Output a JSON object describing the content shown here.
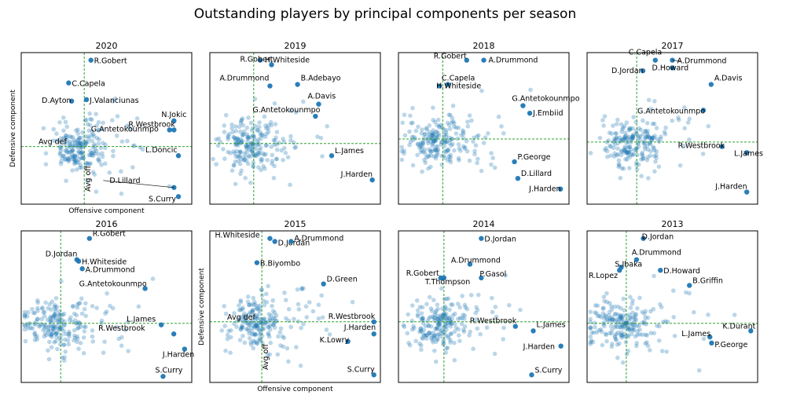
{
  "figure": {
    "title": "Outstanding players by principal components per season"
  },
  "chart_data": [
    {
      "type": "scatter",
      "title": "2020",
      "xlabel": "Offensive component",
      "ylabel": "Defensive component",
      "avg_labels": {
        "x": "Avg off",
        "y": "Avg def"
      },
      "xlim": [
        -3.5,
        8
      ],
      "ylim": [
        -3.5,
        6.5
      ],
      "avg": {
        "x": 0.75,
        "y": 0.3
      },
      "highlighted": [
        {
          "name": "R.Gobert",
          "x": 1.2,
          "y": 6.0
        },
        {
          "name": "C.Capela",
          "x": -0.3,
          "y": 4.5
        },
        {
          "name": "J.Valanciunas",
          "x": 0.9,
          "y": 3.4
        },
        {
          "name": "D.Ayton",
          "x": -0.1,
          "y": 3.3
        },
        {
          "name": "N.Jokic",
          "x": 6.8,
          "y": 2.0
        },
        {
          "name": "G.Antetokounmpo",
          "x": 6.5,
          "y": 1.4
        },
        {
          "name": "R.Westbrook",
          "x": 6.8,
          "y": 1.4
        },
        {
          "name": "L.Doncic",
          "x": 7.1,
          "y": -0.3
        },
        {
          "name": "D.Lillard",
          "x": 6.8,
          "y": -2.4
        },
        {
          "name": "S.Curry",
          "x": 7.1,
          "y": -3.0
        }
      ]
    },
    {
      "type": "scatter",
      "title": "2019",
      "xlim": [
        -2.5,
        8
      ],
      "ylim": [
        -3.5,
        6.5
      ],
      "avg": {
        "x": 0.2,
        "y": 0.5
      },
      "highlighted": [
        {
          "name": "H.Whiteside",
          "x": 0.6,
          "y": 6.0
        },
        {
          "name": "R.Gobert",
          "x": 1.3,
          "y": 5.7
        },
        {
          "name": "A.Drummond",
          "x": 1.2,
          "y": 4.3
        },
        {
          "name": "B.Adebayo",
          "x": 2.9,
          "y": 4.4
        },
        {
          "name": "A.Davis",
          "x": 4.2,
          "y": 3.1
        },
        {
          "name": "G.Antetokounmpo",
          "x": 4.0,
          "y": 2.3
        },
        {
          "name": "L.James",
          "x": 5.0,
          "y": -0.3
        },
        {
          "name": "J.Harden",
          "x": 7.5,
          "y": -1.9
        }
      ]
    },
    {
      "type": "scatter",
      "title": "2018",
      "xlim": [
        -2,
        8
      ],
      "ylim": [
        -3.5,
        6.5
      ],
      "avg": {
        "x": 0.6,
        "y": 0.8
      },
      "highlighted": [
        {
          "name": "R.Gobert",
          "x": 2.0,
          "y": 6.0
        },
        {
          "name": "A.Drummond",
          "x": 3.0,
          "y": 6.0
        },
        {
          "name": "C.Capela",
          "x": 0.9,
          "y": 4.4
        },
        {
          "name": "H.Whiteside",
          "x": 0.4,
          "y": 4.3
        },
        {
          "name": "G.Antetokounmpo",
          "x": 5.3,
          "y": 3.0
        },
        {
          "name": "J.Embiid",
          "x": 5.7,
          "y": 2.5
        },
        {
          "name": "P.George",
          "x": 4.8,
          "y": -0.7
        },
        {
          "name": "D.Lillard",
          "x": 5.0,
          "y": -1.8
        },
        {
          "name": "J.Harden",
          "x": 7.5,
          "y": -2.5
        }
      ]
    },
    {
      "type": "scatter",
      "title": "2017",
      "xlim": [
        -3,
        8
      ],
      "ylim": [
        -3.5,
        6.5
      ],
      "avg": {
        "x": 0.2,
        "y": 0.6
      },
      "highlighted": [
        {
          "name": "C.Capela",
          "x": 1.4,
          "y": 6.0
        },
        {
          "name": "A.Drummond",
          "x": 2.5,
          "y": 6.0
        },
        {
          "name": "D.Jordan",
          "x": 0.6,
          "y": 5.3
        },
        {
          "name": "D.Howard",
          "x": 2.5,
          "y": 5.5
        },
        {
          "name": "A.Davis",
          "x": 5.0,
          "y": 4.4
        },
        {
          "name": "G.Antetokounmpo",
          "x": 4.5,
          "y": 2.7
        },
        {
          "name": "R.Westbrook",
          "x": 5.7,
          "y": 0.3
        },
        {
          "name": "L.James",
          "x": 7.3,
          "y": -0.1
        },
        {
          "name": "J.Harden",
          "x": 7.3,
          "y": -2.7
        }
      ]
    },
    {
      "type": "scatter",
      "title": "2016",
      "xlim": [
        -2,
        7.5
      ],
      "ylim": [
        -3.5,
        6.5
      ],
      "avg": {
        "x": 0.2,
        "y": 0.4
      },
      "highlighted": [
        {
          "name": "R.Gobert",
          "x": 1.8,
          "y": 6.0
        },
        {
          "name": "D.Jordan",
          "x": 1.1,
          "y": 4.6
        },
        {
          "name": "H.Whiteside",
          "x": 1.2,
          "y": 4.5
        },
        {
          "name": "A.Drummond",
          "x": 1.4,
          "y": 4.0
        },
        {
          "name": "G.Antetokounmpo",
          "x": 4.9,
          "y": 2.7
        },
        {
          "name": "L.James",
          "x": 5.8,
          "y": 0.3
        },
        {
          "name": "R.Westbrook",
          "x": 6.5,
          "y": -0.3
        },
        {
          "name": "J.Harden",
          "x": 7.1,
          "y": -1.3
        },
        {
          "name": "S.Curry",
          "x": 5.9,
          "y": -3.1
        }
      ]
    },
    {
      "type": "scatter",
      "title": "2015",
      "xlabel": "Offensive component",
      "ylabel": "Defensive component",
      "avg_labels": {
        "x": "Avg off",
        "y": "Avg def"
      },
      "xlim": [
        -2.5,
        8
      ],
      "ylim": [
        -3.5,
        6.5
      ],
      "avg": {
        "x": 0.7,
        "y": 0.5
      },
      "highlighted": [
        {
          "name": "H.Whiteside",
          "x": 1.2,
          "y": 6.0
        },
        {
          "name": "D.Jordan",
          "x": 1.5,
          "y": 5.8
        },
        {
          "name": "A.Drummond",
          "x": 2.5,
          "y": 5.8
        },
        {
          "name": "B.Biyombo",
          "x": 0.4,
          "y": 4.4
        },
        {
          "name": "D.Green",
          "x": 4.5,
          "y": 3.0
        },
        {
          "name": "R.Westbrook",
          "x": 7.6,
          "y": 0.5
        },
        {
          "name": "J.Harden",
          "x": 7.6,
          "y": -0.3
        },
        {
          "name": "K.Lowry",
          "x": 6.0,
          "y": -0.8
        },
        {
          "name": "S.Curry",
          "x": 7.6,
          "y": -3.0
        }
      ]
    },
    {
      "type": "scatter",
      "title": "2014",
      "xlim": [
        -2.5,
        8
      ],
      "ylim": [
        -3.5,
        6.5
      ],
      "avg": {
        "x": 0.3,
        "y": 0.5
      },
      "highlighted": [
        {
          "name": "D.Jordan",
          "x": 2.6,
          "y": 6.0
        },
        {
          "name": "A.Drummond",
          "x": 1.9,
          "y": 4.3
        },
        {
          "name": "R.Gobert",
          "x": 0.1,
          "y": 3.4
        },
        {
          "name": "P.Gasol",
          "x": 2.6,
          "y": 3.4
        },
        {
          "name": "T.Thompson",
          "x": 0.3,
          "y": 3.4
        },
        {
          "name": "R.Westbrook",
          "x": 4.7,
          "y": 0.2
        },
        {
          "name": "L.James",
          "x": 5.8,
          "y": -0.1
        },
        {
          "name": "J.Harden",
          "x": 7.5,
          "y": -1.1
        },
        {
          "name": "S.Curry",
          "x": 5.7,
          "y": -3.0
        }
      ]
    },
    {
      "type": "scatter",
      "title": "2013",
      "xlim": [
        -2,
        8
      ],
      "ylim": [
        -3.5,
        6.5
      ],
      "avg": {
        "x": 0.3,
        "y": 0.4
      },
      "highlighted": [
        {
          "name": "D.Jordan",
          "x": 1.3,
          "y": 6.0
        },
        {
          "name": "A.Drummond",
          "x": 0.9,
          "y": 4.6
        },
        {
          "name": "S.Ibaka",
          "x": 0.0,
          "y": 4.1
        },
        {
          "name": "R.Lopez",
          "x": -0.1,
          "y": 3.9
        },
        {
          "name": "D.Howard",
          "x": 2.3,
          "y": 3.9
        },
        {
          "name": "B.Griffin",
          "x": 4.0,
          "y": 2.9
        },
        {
          "name": "K.Durant",
          "x": 7.6,
          "y": -0.1
        },
        {
          "name": "L.James",
          "x": 5.2,
          "y": -0.5
        },
        {
          "name": "P.George",
          "x": 5.3,
          "y": -0.9
        }
      ]
    }
  ]
}
